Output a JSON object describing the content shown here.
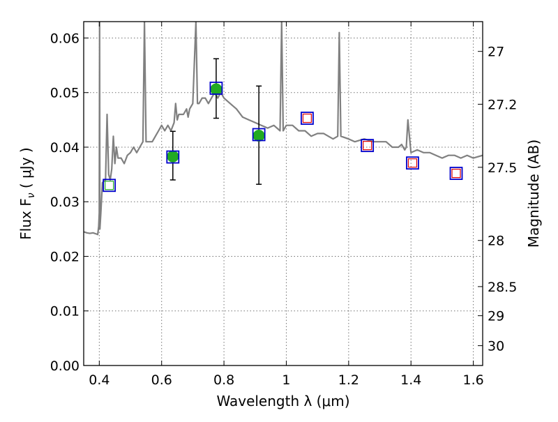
{
  "chart_data": {
    "type": "scatter",
    "xlabel": "Wavelength  λ (μm)",
    "ylabel": "Flux  F",
    "ylabel_sub": "ν",
    "ylabel_unit": " ( μJy )",
    "y2label": "Magnitude (AB)",
    "xlim": [
      0.35,
      1.63
    ],
    "ylim": [
      0.0,
      0.063
    ],
    "grid": true,
    "x_ticks": [
      {
        "value": 0.4,
        "label": "0.4"
      },
      {
        "value": 0.6,
        "label": "0.6"
      },
      {
        "value": 0.8,
        "label": "0.8"
      },
      {
        "value": 1.0,
        "label": "1"
      },
      {
        "value": 1.2,
        "label": "1.2"
      },
      {
        "value": 1.4,
        "label": "1.4"
      },
      {
        "value": 1.6,
        "label": "1.6"
      }
    ],
    "y_ticks": [
      {
        "value": 0.0,
        "label": "0.00"
      },
      {
        "value": 0.01,
        "label": "0.01"
      },
      {
        "value": 0.02,
        "label": "0.02"
      },
      {
        "value": 0.03,
        "label": "0.03"
      },
      {
        "value": 0.04,
        "label": "0.04"
      },
      {
        "value": 0.05,
        "label": "0.05"
      },
      {
        "value": 0.06,
        "label": "0.06"
      }
    ],
    "y2_ticks": [
      {
        "value": 27,
        "label": "27"
      },
      {
        "value": 27.2,
        "label": "27.2"
      },
      {
        "value": 27.5,
        "label": "27.5"
      },
      {
        "value": 28,
        "label": "28"
      },
      {
        "value": 28.5,
        "label": "28.5"
      },
      {
        "value": 29,
        "label": "29"
      },
      {
        "value": 30,
        "label": "30"
      }
    ],
    "series": [
      {
        "kind": "line",
        "color": "#808080",
        "x": [
          0.35,
          0.36,
          0.37,
          0.38,
          0.39,
          0.395,
          0.398,
          0.4,
          0.401,
          0.402,
          0.405,
          0.41,
          0.42,
          0.425,
          0.43,
          0.435,
          0.44,
          0.445,
          0.45,
          0.455,
          0.46,
          0.47,
          0.48,
          0.49,
          0.5,
          0.51,
          0.52,
          0.53,
          0.54,
          0.545,
          0.55,
          0.56,
          0.57,
          0.58,
          0.59,
          0.6,
          0.61,
          0.62,
          0.63,
          0.64,
          0.645,
          0.65,
          0.655,
          0.66,
          0.67,
          0.68,
          0.685,
          0.69,
          0.7,
          0.71,
          0.715,
          0.72,
          0.73,
          0.74,
          0.75,
          0.76,
          0.77,
          0.78,
          0.79,
          0.8,
          0.82,
          0.84,
          0.86,
          0.88,
          0.9,
          0.92,
          0.94,
          0.96,
          0.98,
          0.985,
          0.99,
          1.0,
          1.02,
          1.04,
          1.06,
          1.08,
          1.1,
          1.12,
          1.15,
          1.165,
          1.17,
          1.175,
          1.2,
          1.22,
          1.25,
          1.28,
          1.3,
          1.32,
          1.34,
          1.35,
          1.36,
          1.37,
          1.38,
          1.385,
          1.39,
          1.4,
          1.42,
          1.44,
          1.46,
          1.48,
          1.5,
          1.52,
          1.54,
          1.56,
          1.58,
          1.6,
          1.63
        ],
        "y": [
          0.0245,
          0.0243,
          0.0242,
          0.0243,
          0.0241,
          0.024,
          0.0255,
          0.028,
          0.063,
          0.025,
          0.028,
          0.0335,
          0.034,
          0.046,
          0.035,
          0.034,
          0.036,
          0.042,
          0.037,
          0.04,
          0.038,
          0.038,
          0.037,
          0.0385,
          0.039,
          0.04,
          0.039,
          0.04,
          0.041,
          0.063,
          0.041,
          0.041,
          0.041,
          0.042,
          0.043,
          0.044,
          0.043,
          0.044,
          0.043,
          0.0445,
          0.048,
          0.045,
          0.046,
          0.046,
          0.046,
          0.047,
          0.0455,
          0.047,
          0.048,
          0.063,
          0.048,
          0.048,
          0.049,
          0.049,
          0.048,
          0.049,
          0.05,
          0.049,
          0.05,
          0.049,
          0.048,
          0.047,
          0.0455,
          0.045,
          0.0445,
          0.044,
          0.0435,
          0.044,
          0.043,
          0.063,
          0.043,
          0.044,
          0.044,
          0.043,
          0.043,
          0.042,
          0.0425,
          0.0425,
          0.0415,
          0.042,
          0.061,
          0.042,
          0.0415,
          0.041,
          0.0415,
          0.041,
          0.041,
          0.041,
          0.04,
          0.04,
          0.04,
          0.0405,
          0.0395,
          0.04,
          0.045,
          0.039,
          0.0395,
          0.039,
          0.039,
          0.0385,
          0.038,
          0.0385,
          0.0385,
          0.038,
          0.0385,
          0.038,
          0.0385
        ]
      },
      {
        "kind": "points",
        "marker": "circle",
        "color": "#22aa22",
        "x": [
          0.636,
          0.775,
          0.912
        ],
        "y": [
          0.0383,
          0.0506,
          0.0421
        ],
        "yerr_low": [
          0.0043,
          0.0053,
          0.0089
        ],
        "yerr_high": [
          0.0046,
          0.0056,
          0.0091
        ]
      },
      {
        "kind": "points",
        "marker": "open-square-blue",
        "color": "#0000cc",
        "x": [
          0.432,
          0.636,
          0.775,
          0.912,
          1.067,
          1.26,
          1.405,
          1.545
        ],
        "y": [
          0.033,
          0.0382,
          0.0508,
          0.0423,
          0.0453,
          0.0403,
          0.0371,
          0.0352
        ]
      },
      {
        "kind": "points",
        "marker": "open-square-green",
        "color": "#22aa22",
        "x": [
          0.432
        ],
        "y": [
          0.033
        ]
      },
      {
        "kind": "points",
        "marker": "open-square-red",
        "color": "#dd0000",
        "x": [
          1.067,
          1.26,
          1.405,
          1.545
        ],
        "y": [
          0.0453,
          0.0403,
          0.0371,
          0.0352
        ]
      }
    ]
  }
}
